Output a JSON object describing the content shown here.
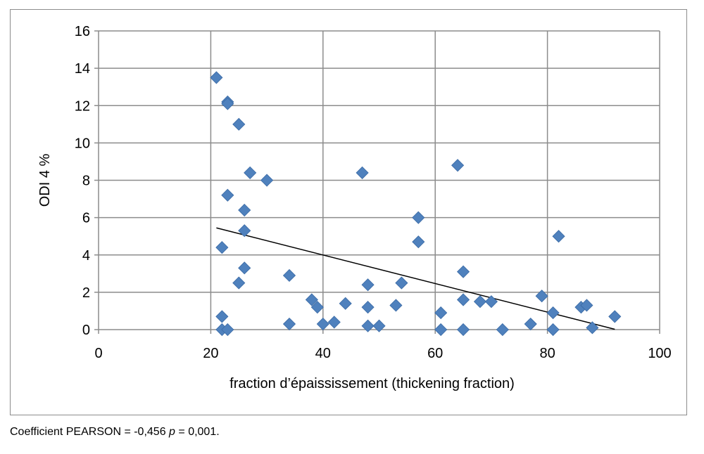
{
  "chart_data": {
    "type": "scatter",
    "xlabel": "fraction d’épaississement (thickening fraction)",
    "ylabel": "ODI 4 %",
    "xlim": [
      0,
      100
    ],
    "ylim": [
      0,
      16
    ],
    "xticks": [
      "0",
      "20",
      "40",
      "60",
      "80",
      "100"
    ],
    "yticks": [
      "0",
      "2",
      "4",
      "6",
      "8",
      "10",
      "12",
      "14",
      "16"
    ],
    "grid": true,
    "marker_color": "#4f81bd",
    "trendline_color": "#000000",
    "trendline": {
      "x": [
        21,
        92
      ],
      "y": [
        5.45,
        0.02
      ]
    },
    "points": [
      {
        "x": 21,
        "y": 13.5
      },
      {
        "x": 23,
        "y": 12.2
      },
      {
        "x": 23,
        "y": 12.1
      },
      {
        "x": 25,
        "y": 11.0
      },
      {
        "x": 27,
        "y": 8.4
      },
      {
        "x": 30,
        "y": 8.0
      },
      {
        "x": 23,
        "y": 7.2
      },
      {
        "x": 26,
        "y": 6.4
      },
      {
        "x": 26,
        "y": 5.3
      },
      {
        "x": 22,
        "y": 4.4
      },
      {
        "x": 26,
        "y": 3.3
      },
      {
        "x": 25,
        "y": 2.5
      },
      {
        "x": 22,
        "y": 0.7
      },
      {
        "x": 22,
        "y": 0.0
      },
      {
        "x": 23,
        "y": 0.0
      },
      {
        "x": 34,
        "y": 2.9
      },
      {
        "x": 34,
        "y": 0.3
      },
      {
        "x": 38,
        "y": 1.6
      },
      {
        "x": 39,
        "y": 1.2
      },
      {
        "x": 40,
        "y": 0.3
      },
      {
        "x": 42,
        "y": 0.4
      },
      {
        "x": 44,
        "y": 1.4
      },
      {
        "x": 47,
        "y": 8.4
      },
      {
        "x": 48,
        "y": 2.4
      },
      {
        "x": 48,
        "y": 1.2
      },
      {
        "x": 48,
        "y": 0.2
      },
      {
        "x": 50,
        "y": 0.2
      },
      {
        "x": 53,
        "y": 1.3
      },
      {
        "x": 54,
        "y": 2.5
      },
      {
        "x": 57,
        "y": 6.0
      },
      {
        "x": 57,
        "y": 4.7
      },
      {
        "x": 61,
        "y": 0.9
      },
      {
        "x": 61,
        "y": 0.0
      },
      {
        "x": 64,
        "y": 8.8
      },
      {
        "x": 65,
        "y": 3.1
      },
      {
        "x": 65,
        "y": 1.6
      },
      {
        "x": 65,
        "y": 0.0
      },
      {
        "x": 68,
        "y": 1.5
      },
      {
        "x": 70,
        "y": 1.5
      },
      {
        "x": 72,
        "y": 0.0
      },
      {
        "x": 77,
        "y": 0.3
      },
      {
        "x": 79,
        "y": 1.8
      },
      {
        "x": 81,
        "y": 0.9
      },
      {
        "x": 81,
        "y": 0.0
      },
      {
        "x": 82,
        "y": 5.0
      },
      {
        "x": 86,
        "y": 1.2
      },
      {
        "x": 87,
        "y": 1.3
      },
      {
        "x": 88,
        "y": 0.1
      },
      {
        "x": 92,
        "y": 0.7
      }
    ]
  },
  "caption": {
    "prefix": "Coefficient PEARSON = -0,456  ",
    "p_symbol": "p",
    "suffix": " = 0,001."
  }
}
